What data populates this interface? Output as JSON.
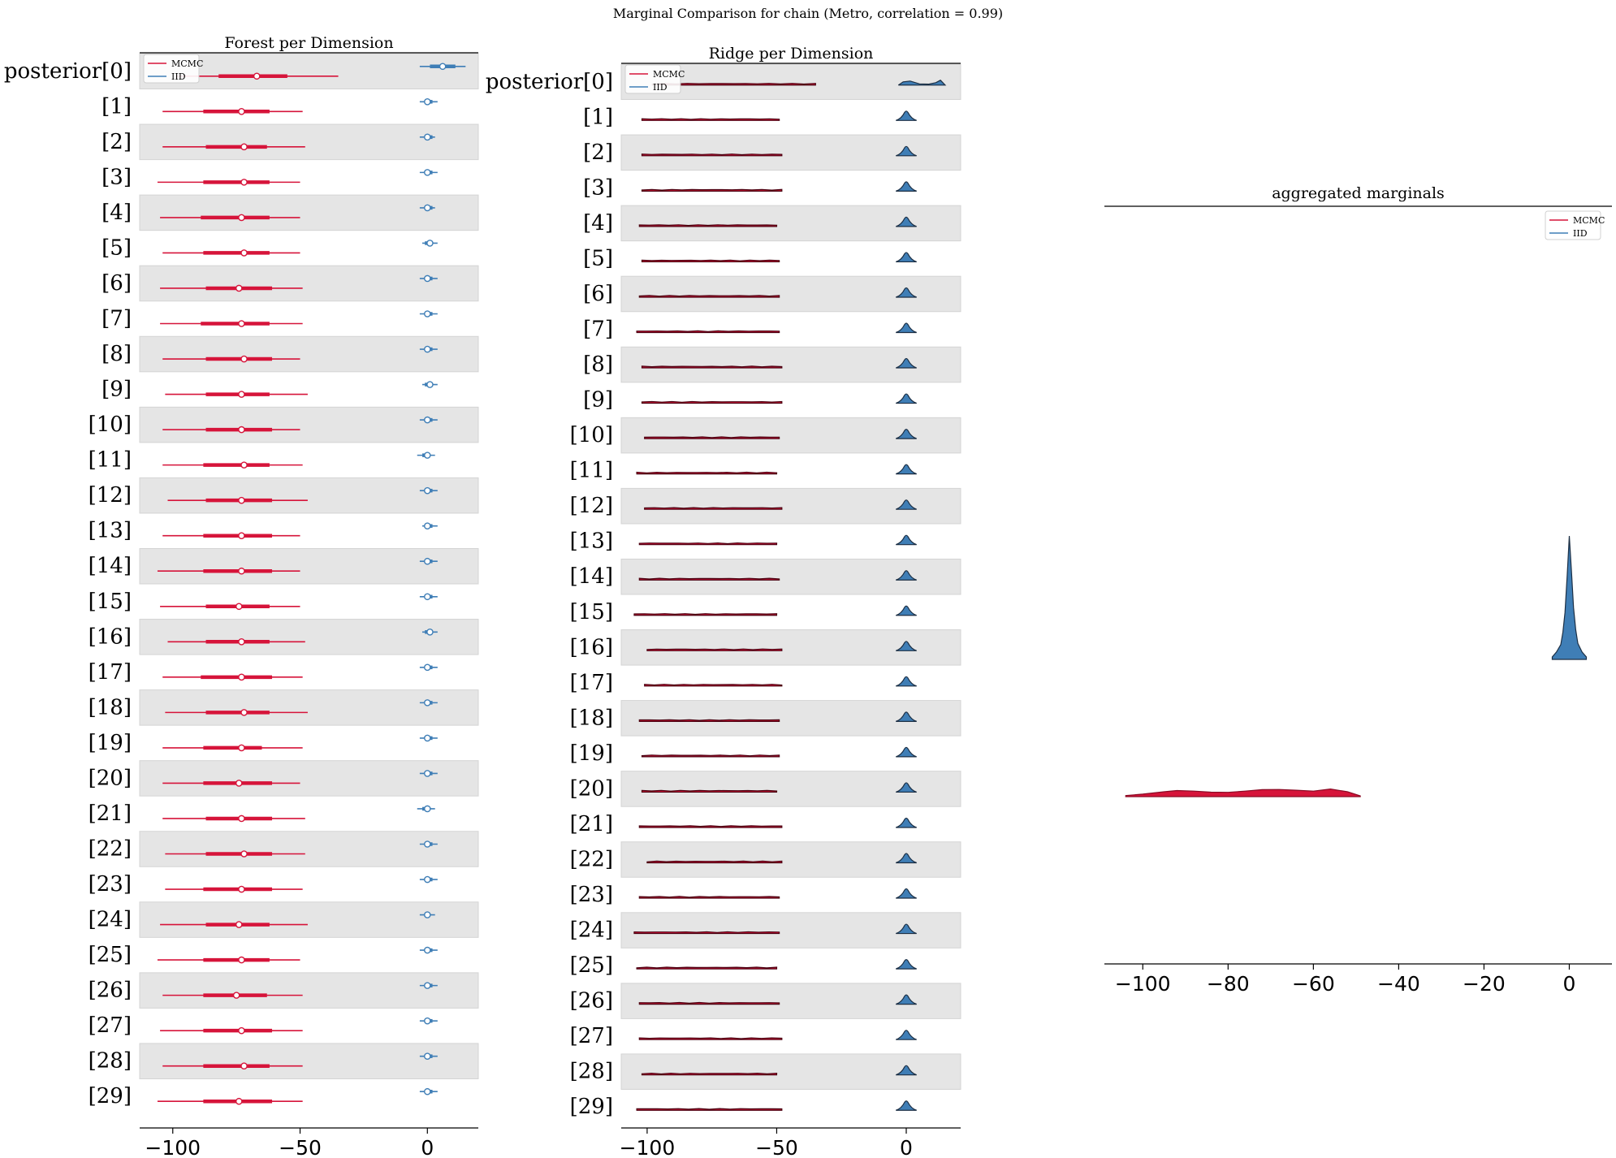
{
  "figure_title": "Marginal Comparison for chain (Metro, correlation = 0.99)",
  "colors": {
    "mcmc": "#d6143a",
    "iid": "#3f7eb6",
    "band": "#e5e5e5",
    "ridge_edge": "#4a0010"
  },
  "legend": [
    "MCMC",
    "IID"
  ],
  "chart_data": [
    {
      "id": "forest",
      "type": "forest",
      "title": "Forest per Dimension",
      "xlim": [
        -113,
        20
      ],
      "xticks": [
        -100,
        -50,
        0
      ],
      "xtick_labels": [
        "−100",
        "−50",
        "0"
      ],
      "row_labels": [
        "posterior[0]",
        "[1]",
        "[2]",
        "[3]",
        "[4]",
        "[5]",
        "[6]",
        "[7]",
        "[8]",
        "[9]",
        "[10]",
        "[11]",
        "[12]",
        "[13]",
        "[14]",
        "[15]",
        "[16]",
        "[17]",
        "[18]",
        "[19]",
        "[20]",
        "[21]",
        "[22]",
        "[23]",
        "[24]",
        "[25]",
        "[26]",
        "[27]",
        "[28]",
        "[29]"
      ],
      "series": [
        {
          "name": "MCMC",
          "rows": [
            {
              "lo": -99,
              "q1": -82,
              "median": -67,
              "q3": -55,
              "hi": -35
            },
            {
              "lo": -104,
              "q1": -88,
              "median": -73,
              "q3": -62,
              "hi": -49
            },
            {
              "lo": -104,
              "q1": -87,
              "median": -72,
              "q3": -63,
              "hi": -48
            },
            {
              "lo": -106,
              "q1": -88,
              "median": -72,
              "q3": -62,
              "hi": -50
            },
            {
              "lo": -105,
              "q1": -89,
              "median": -73,
              "q3": -62,
              "hi": -50
            },
            {
              "lo": -104,
              "q1": -88,
              "median": -72,
              "q3": -62,
              "hi": -50
            },
            {
              "lo": -105,
              "q1": -87,
              "median": -74,
              "q3": -61,
              "hi": -49
            },
            {
              "lo": -105,
              "q1": -89,
              "median": -73,
              "q3": -62,
              "hi": -49
            },
            {
              "lo": -104,
              "q1": -87,
              "median": -72,
              "q3": -61,
              "hi": -50
            },
            {
              "lo": -103,
              "q1": -87,
              "median": -73,
              "q3": -62,
              "hi": -47
            },
            {
              "lo": -104,
              "q1": -87,
              "median": -73,
              "q3": -61,
              "hi": -50
            },
            {
              "lo": -104,
              "q1": -88,
              "median": -72,
              "q3": -62,
              "hi": -49
            },
            {
              "lo": -102,
              "q1": -87,
              "median": -73,
              "q3": -61,
              "hi": -47
            },
            {
              "lo": -104,
              "q1": -88,
              "median": -73,
              "q3": -61,
              "hi": -50
            },
            {
              "lo": -106,
              "q1": -88,
              "median": -73,
              "q3": -61,
              "hi": -50
            },
            {
              "lo": -105,
              "q1": -87,
              "median": -74,
              "q3": -62,
              "hi": -50
            },
            {
              "lo": -102,
              "q1": -87,
              "median": -73,
              "q3": -62,
              "hi": -48
            },
            {
              "lo": -104,
              "q1": -89,
              "median": -73,
              "q3": -61,
              "hi": -49
            },
            {
              "lo": -103,
              "q1": -87,
              "median": -72,
              "q3": -62,
              "hi": -47
            },
            {
              "lo": -104,
              "q1": -88,
              "median": -73,
              "q3": -65,
              "hi": -49
            },
            {
              "lo": -104,
              "q1": -88,
              "median": -74,
              "q3": -61,
              "hi": -50
            },
            {
              "lo": -104,
              "q1": -87,
              "median": -73,
              "q3": -61,
              "hi": -48
            },
            {
              "lo": -103,
              "q1": -87,
              "median": -72,
              "q3": -61,
              "hi": -48
            },
            {
              "lo": -103,
              "q1": -88,
              "median": -73,
              "q3": -61,
              "hi": -49
            },
            {
              "lo": -105,
              "q1": -87,
              "median": -74,
              "q3": -62,
              "hi": -47
            },
            {
              "lo": -106,
              "q1": -88,
              "median": -73,
              "q3": -62,
              "hi": -50
            },
            {
              "lo": -104,
              "q1": -88,
              "median": -75,
              "q3": -63,
              "hi": -49
            },
            {
              "lo": -105,
              "q1": -88,
              "median": -73,
              "q3": -61,
              "hi": -49
            },
            {
              "lo": -104,
              "q1": -88,
              "median": -72,
              "q3": -62,
              "hi": -49
            },
            {
              "lo": -106,
              "q1": -88,
              "median": -74,
              "q3": -61,
              "hi": -49
            }
          ]
        },
        {
          "name": "IID",
          "rows": [
            {
              "lo": -3,
              "q1": 1,
              "median": 6,
              "q3": 11,
              "hi": 15
            },
            {
              "lo": -3,
              "q1": -1,
              "median": 0,
              "q3": 2,
              "hi": 4
            },
            {
              "lo": -3,
              "q1": -1,
              "median": 0,
              "q3": 2,
              "hi": 3
            },
            {
              "lo": -3,
              "q1": -1,
              "median": 0,
              "q3": 2,
              "hi": 4
            },
            {
              "lo": -3,
              "q1": -1,
              "median": 0,
              "q3": 2,
              "hi": 3
            },
            {
              "lo": -2,
              "q1": -1,
              "median": 1,
              "q3": 2,
              "hi": 4
            },
            {
              "lo": -3,
              "q1": -1,
              "median": 0,
              "q3": 2,
              "hi": 4
            },
            {
              "lo": -3,
              "q1": -1,
              "median": 0,
              "q3": 2,
              "hi": 4
            },
            {
              "lo": -3,
              "q1": -1,
              "median": 0,
              "q3": 2,
              "hi": 4
            },
            {
              "lo": -2,
              "q1": -1,
              "median": 1,
              "q3": 2,
              "hi": 4
            },
            {
              "lo": -3,
              "q1": -1,
              "median": 0,
              "q3": 2,
              "hi": 4
            },
            {
              "lo": -4,
              "q1": -2,
              "median": 0,
              "q3": 1,
              "hi": 3
            },
            {
              "lo": -3,
              "q1": -1,
              "median": 0,
              "q3": 2,
              "hi": 4
            },
            {
              "lo": -2,
              "q1": -1,
              "median": 0,
              "q3": 2,
              "hi": 4
            },
            {
              "lo": -3,
              "q1": -1,
              "median": 0,
              "q3": 2,
              "hi": 4
            },
            {
              "lo": -3,
              "q1": -1,
              "median": 0,
              "q3": 2,
              "hi": 4
            },
            {
              "lo": -2,
              "q1": -1,
              "median": 1,
              "q3": 2,
              "hi": 4
            },
            {
              "lo": -3,
              "q1": -1,
              "median": 0,
              "q3": 2,
              "hi": 4
            },
            {
              "lo": -3,
              "q1": -1,
              "median": 0,
              "q3": 2,
              "hi": 4
            },
            {
              "lo": -3,
              "q1": -1,
              "median": 0,
              "q3": 2,
              "hi": 4
            },
            {
              "lo": -3,
              "q1": -1,
              "median": 0,
              "q3": 2,
              "hi": 4
            },
            {
              "lo": -4,
              "q1": -2,
              "median": 0,
              "q3": 1,
              "hi": 3
            },
            {
              "lo": -3,
              "q1": -1,
              "median": 0,
              "q3": 2,
              "hi": 4
            },
            {
              "lo": -3,
              "q1": -1,
              "median": 0,
              "q3": 2,
              "hi": 4
            },
            {
              "lo": -3,
              "q1": -1,
              "median": 0,
              "q3": 1,
              "hi": 3
            },
            {
              "lo": -3,
              "q1": -1,
              "median": 0,
              "q3": 2,
              "hi": 4
            },
            {
              "lo": -3,
              "q1": -1,
              "median": 0,
              "q3": 2,
              "hi": 4
            },
            {
              "lo": -3,
              "q1": -1,
              "median": 0,
              "q3": 2,
              "hi": 4
            },
            {
              "lo": -3,
              "q1": -1,
              "median": 0,
              "q3": 2,
              "hi": 4
            },
            {
              "lo": -3,
              "q1": -1,
              "median": 0,
              "q3": 2,
              "hi": 4
            }
          ]
        }
      ],
      "legend_position": "top-left"
    },
    {
      "id": "ridge",
      "type": "ridgeline",
      "title": "Ridge per Dimension",
      "xlim": [
        -110,
        21
      ],
      "xticks": [
        -100,
        -50,
        0
      ],
      "xtick_labels": [
        "−100",
        "−50",
        "0"
      ],
      "row_labels": [
        "posterior[0]",
        "[1]",
        "[2]",
        "[3]",
        "[4]",
        "[5]",
        "[6]",
        "[7]",
        "[8]",
        "[9]",
        "[10]",
        "[11]",
        "[12]",
        "[13]",
        "[14]",
        "[15]",
        "[16]",
        "[17]",
        "[18]",
        "[19]",
        "[20]",
        "[21]",
        "[22]",
        "[23]",
        "[24]",
        "[25]",
        "[26]",
        "[27]",
        "[28]",
        "[29]"
      ],
      "series": [
        {
          "name": "MCMC",
          "ranges": [
            [
              -98,
              -35
            ],
            [
              -102,
              -49
            ],
            [
              -102,
              -48
            ],
            [
              -102,
              -48
            ],
            [
              -103,
              -50
            ],
            [
              -102,
              -49
            ],
            [
              -103,
              -49
            ],
            [
              -104,
              -49
            ],
            [
              -102,
              -48
            ],
            [
              -102,
              -48
            ],
            [
              -101,
              -49
            ],
            [
              -104,
              -50
            ],
            [
              -101,
              -48
            ],
            [
              -103,
              -50
            ],
            [
              -103,
              -49
            ],
            [
              -105,
              -50
            ],
            [
              -100,
              -48
            ],
            [
              -101,
              -48
            ],
            [
              -103,
              -49
            ],
            [
              -102,
              -49
            ],
            [
              -102,
              -50
            ],
            [
              -103,
              -48
            ],
            [
              -100,
              -48
            ],
            [
              -103,
              -49
            ],
            [
              -105,
              -49
            ],
            [
              -104,
              -50
            ],
            [
              -103,
              -49
            ],
            [
              -103,
              -48
            ],
            [
              -102,
              -50
            ],
            [
              -104,
              -48
            ]
          ]
        },
        {
          "name": "IID",
          "ranges": [
            [
              -3,
              15
            ],
            [
              -4,
              4
            ],
            [
              -4,
              4
            ],
            [
              -4,
              4
            ],
            [
              -4,
              4
            ],
            [
              -4,
              4
            ],
            [
              -4,
              4
            ],
            [
              -4,
              4
            ],
            [
              -4,
              4
            ],
            [
              -4,
              4
            ],
            [
              -4,
              4
            ],
            [
              -4,
              4
            ],
            [
              -4,
              4
            ],
            [
              -4,
              4
            ],
            [
              -4,
              4
            ],
            [
              -4,
              4
            ],
            [
              -4,
              4
            ],
            [
              -4,
              4
            ],
            [
              -4,
              4
            ],
            [
              -4,
              4
            ],
            [
              -4,
              4
            ],
            [
              -4,
              4
            ],
            [
              -4,
              4
            ],
            [
              -4,
              4
            ],
            [
              -4,
              4
            ],
            [
              -4,
              4
            ],
            [
              -4,
              4
            ],
            [
              -4,
              4
            ],
            [
              -4,
              4
            ],
            [
              -4,
              4
            ]
          ]
        }
      ],
      "legend_position": "top-left"
    },
    {
      "id": "aggregated",
      "type": "area",
      "title": "aggregated marginals",
      "xlim": [
        -109,
        10
      ],
      "xticks": [
        -100,
        -80,
        -60,
        -40,
        -20,
        0
      ],
      "xtick_labels": [
        "−100",
        "−80",
        "−60",
        "−40",
        "−20",
        "0"
      ],
      "series": [
        {
          "name": "MCMC",
          "x": [
            -104,
            -100,
            -95,
            -92,
            -88,
            -84,
            -80,
            -76,
            -72,
            -68,
            -64,
            -60,
            -56,
            -52,
            -49
          ],
          "y": [
            0.12,
            0.28,
            0.55,
            0.68,
            0.62,
            0.5,
            0.48,
            0.62,
            0.78,
            0.8,
            0.72,
            0.62,
            0.85,
            0.55,
            0.08
          ]
        },
        {
          "name": "IID",
          "x": [
            -4,
            -3,
            -2,
            -1.5,
            -1,
            -0.5,
            0,
            0.5,
            1,
            1.5,
            2,
            3,
            4
          ],
          "y": [
            0.02,
            0.06,
            0.12,
            0.22,
            0.38,
            0.68,
            1.0,
            0.72,
            0.42,
            0.24,
            0.13,
            0.06,
            0.02
          ]
        }
      ],
      "legend_position": "top-right"
    }
  ]
}
